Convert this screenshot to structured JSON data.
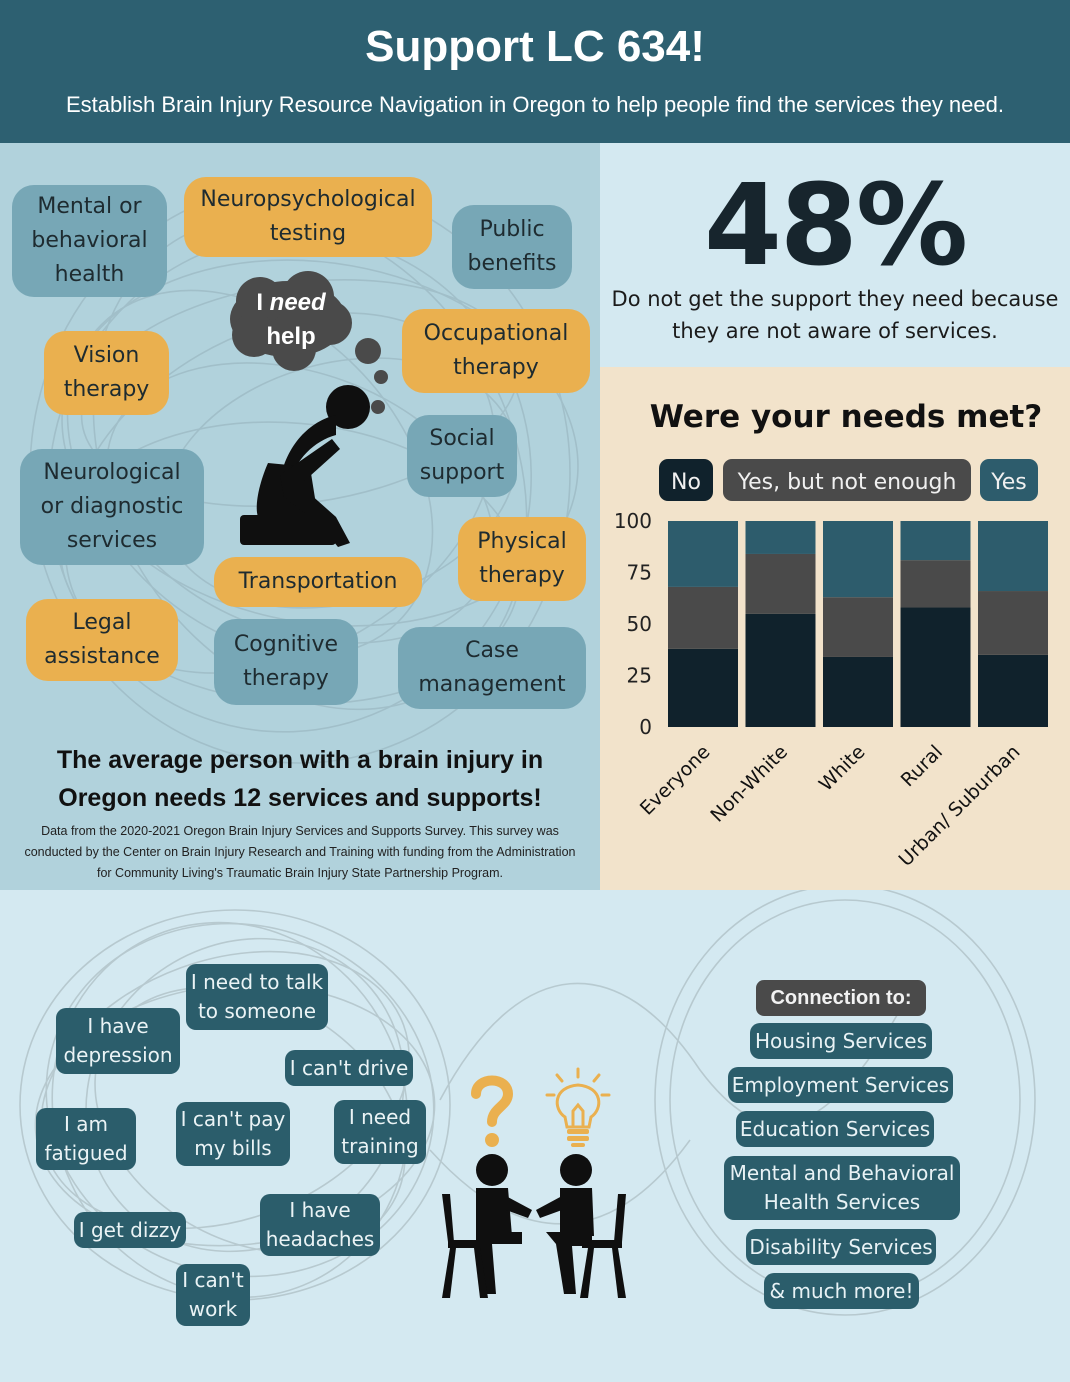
{
  "header": {
    "title": "Support LC 634!",
    "subtitle": "Establish Brain Injury Resource Navigation in Oregon to help people find the services they need."
  },
  "services": {
    "mental": [
      "Mental or",
      "behavioral",
      "health"
    ],
    "neuropsych": [
      "Neuropsychological",
      "testing"
    ],
    "public": [
      "Public",
      "benefits"
    ],
    "vision": [
      "Vision",
      "therapy"
    ],
    "occupational": [
      "Occupational",
      "therapy"
    ],
    "social": [
      "Social",
      "support"
    ],
    "neurological": [
      "Neurological",
      "or diagnostic",
      "services"
    ],
    "physical": [
      "Physical",
      "therapy"
    ],
    "transportation": "Transportation",
    "legal": [
      "Legal",
      "assistance"
    ],
    "cognitive": [
      "Cognitive",
      "therapy"
    ],
    "case": [
      "Case",
      "management"
    ]
  },
  "thought": {
    "line1": "I",
    "emphasis": "need",
    "line2": "help"
  },
  "stat": {
    "value": "48%",
    "text": "Do not get the support they need because they are not aware of services."
  },
  "summary": {
    "headline": "The average person with a brain injury in Oregon needs 12 services and supports!",
    "source": "Data from the 2020-2021 Oregon Brain Injury Services and Supports Survey. This survey was conducted by the Center on Brain Injury Research and Training with funding from the Administration for Community Living's Traumatic Brain Injury State Partnership Program."
  },
  "chart_data": {
    "type": "bar",
    "stacked": true,
    "title": "Were your needs met?",
    "categories": [
      "Everyone",
      "Non-White",
      "White",
      "Rural",
      "Urban/ Suburban"
    ],
    "series": [
      {
        "name": "No",
        "values": [
          38,
          55,
          34,
          58,
          35
        ],
        "color": "#10222c"
      },
      {
        "name": "Yes, but not enough",
        "values": [
          30,
          29,
          29,
          23,
          31
        ],
        "color": "#4a4a4a"
      },
      {
        "name": "Yes",
        "values": [
          32,
          16,
          37,
          19,
          34
        ],
        "color": "#2d5c6c"
      }
    ],
    "ylim": [
      0,
      100
    ],
    "yticks": [
      0,
      25,
      50,
      75,
      100
    ],
    "xlabel": "",
    "ylabel": "",
    "legend": "top",
    "grid": false
  },
  "statements": {
    "talk": [
      "I need to talk",
      "to someone"
    ],
    "depression": [
      "I have",
      "depression"
    ],
    "drive": "I can't drive",
    "fatigued": [
      "I am",
      "fatigued"
    ],
    "bills": [
      "I can't pay",
      "my bills"
    ],
    "training": [
      "I need",
      "training"
    ],
    "dizzy": "I get dizzy",
    "headaches": [
      "I have",
      "headaches"
    ],
    "work": [
      "I can't",
      "work"
    ]
  },
  "connection": {
    "title": "Connection to:",
    "items": [
      [
        "Housing Services"
      ],
      [
        "Employment Services"
      ],
      [
        "Education Services"
      ],
      [
        "Mental and Behavioral",
        "Health Services"
      ],
      [
        "Disability Services"
      ],
      [
        "& much more!"
      ]
    ]
  },
  "icons": {
    "question": "question-mark-icon",
    "lightbulb": "lightbulb-icon"
  },
  "colors": {
    "header": "#2d6071",
    "blue_bubble": "#77a7b6",
    "orange_bubble": "#eab04f",
    "dark_pill": "#2b5d6b",
    "accent_orange": "#eab04f"
  }
}
